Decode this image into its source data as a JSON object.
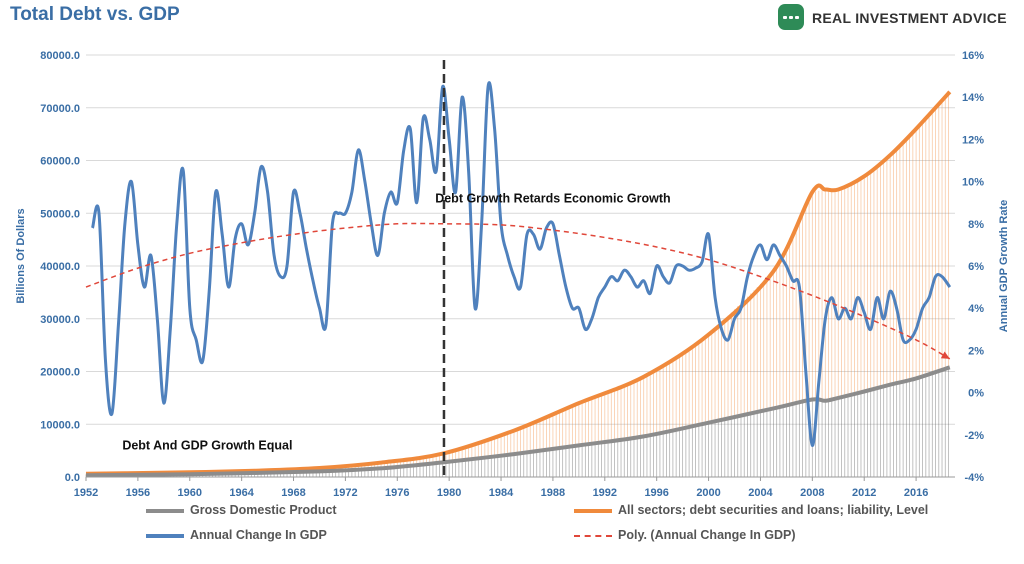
{
  "header": {
    "title": "Total Debt vs. GDP",
    "brand_name": "REAL INVESTMENT ADVICE"
  },
  "legend": {
    "gdp": "Gross Domestic Product",
    "debt": "All sectors; debt securities and loans; liability, Level",
    "growth": "Annual Change In GDP",
    "poly": "Poly. (Annual Change In GDP)"
  },
  "colors": {
    "gdp": "#8c8c8c",
    "debt": "#f08a3c",
    "growth": "#4f81bd",
    "poly": "#e0473a",
    "title": "#3a6ea5",
    "brand": "#2e8b57"
  },
  "chart_data": {
    "type": "line",
    "title": "Total Debt vs. GDP",
    "ylabel_left": "Billions Of Dollars",
    "ylabel_right": "Annual GDP Growth Rate",
    "xlim": [
      1952,
      2019
    ],
    "ylim_left": [
      0,
      80000
    ],
    "ylim_right": [
      -4,
      16
    ],
    "x_ticks": [
      "1952",
      "1956",
      "1960",
      "1964",
      "1968",
      "1972",
      "1976",
      "1980",
      "1984",
      "1988",
      "1992",
      "1996",
      "2000",
      "2004",
      "2008",
      "2012",
      "2016"
    ],
    "y_left_ticks": [
      "0.0",
      "10000.0",
      "20000.0",
      "30000.0",
      "40000.0",
      "50000.0",
      "60000.0",
      "70000.0",
      "80000.0"
    ],
    "y_right_ticks": [
      "-4%",
      "-2%",
      "0%",
      "2%",
      "4%",
      "6%",
      "8%",
      "10%",
      "12%",
      "14%",
      "16%"
    ],
    "vertical_marker_year": 1979.6,
    "annotations": [
      {
        "text": "Debt Growth Retards Economic Growth",
        "x": 1988,
        "y_right": 9.0
      },
      {
        "text": "Debt And GDP Growth Equal",
        "x": 1954.8,
        "y_right": -2.7
      }
    ],
    "series": [
      {
        "name": "All sectors; debt securities and loans; liability, Level",
        "axis": "left",
        "x": [
          1952,
          1955,
          1960,
          1965,
          1970,
          1975,
          1979.6,
          1985,
          1990,
          1995,
          2000,
          2005,
          2008,
          2009,
          2010,
          2012,
          2014,
          2016,
          2018.6
        ],
        "values": [
          600,
          700,
          900,
          1200,
          1700,
          2800,
          4500,
          8800,
          14000,
          19000,
          27000,
          39000,
          54000,
          54500,
          54500,
          57000,
          61000,
          66000,
          73000
        ]
      },
      {
        "name": "Gross Domestic Product",
        "axis": "left",
        "x": [
          1952,
          1960,
          1970,
          1975,
          1979.6,
          1985,
          1990,
          1995,
          2000,
          2005,
          2008,
          2009,
          2010,
          2012,
          2014,
          2016,
          2018.6
        ],
        "values": [
          350,
          540,
          1070,
          1690,
          2800,
          4350,
          6000,
          7700,
          10300,
          13000,
          14700,
          14450,
          15000,
          16200,
          17500,
          18700,
          20800
        ]
      },
      {
        "name": "Annual Change In GDP",
        "axis": "right",
        "x": [
          1952.5,
          1953,
          1953.5,
          1954,
          1954.5,
          1955,
          1955.5,
          1956,
          1956.5,
          1957,
          1957.5,
          1958,
          1958.5,
          1959,
          1959.5,
          1960,
          1960.5,
          1961,
          1961.5,
          1962,
          1962.5,
          1963,
          1963.5,
          1964,
          1964.5,
          1965,
          1965.5,
          1966,
          1966.5,
          1967,
          1967.5,
          1968,
          1968.5,
          1969,
          1969.5,
          1970,
          1970.5,
          1971,
          1971.5,
          1972,
          1972.5,
          1973,
          1973.5,
          1974,
          1974.5,
          1975,
          1975.5,
          1976,
          1976.5,
          1977,
          1977.5,
          1978,
          1978.5,
          1979,
          1979.5,
          1980,
          1980.5,
          1981,
          1981.5,
          1982,
          1982.5,
          1983,
          1983.5,
          1984,
          1984.5,
          1985,
          1985.5,
          1986,
          1986.5,
          1987,
          1987.5,
          1988,
          1988.5,
          1989,
          1989.5,
          1990,
          1990.5,
          1991,
          1991.5,
          1992,
          1992.5,
          1993,
          1993.5,
          1994,
          1994.5,
          1995,
          1995.5,
          1996,
          1996.5,
          1997,
          1997.5,
          1998,
          1998.5,
          1999,
          1999.5,
          2000,
          2000.5,
          2001,
          2001.5,
          2002,
          2002.5,
          2003,
          2003.5,
          2004,
          2004.5,
          2005,
          2005.5,
          2006,
          2006.5,
          2007,
          2007.5,
          2008,
          2008.5,
          2009,
          2009.5,
          2010,
          2010.5,
          2011,
          2011.5,
          2012,
          2012.5,
          2013,
          2013.5,
          2014,
          2014.5,
          2015,
          2015.5,
          2016,
          2016.5,
          2017,
          2017.5,
          2018,
          2018.6
        ],
        "values": [
          7.8,
          8.5,
          1.5,
          -1.0,
          3.2,
          8.0,
          10.0,
          7.0,
          5.0,
          6.5,
          3.5,
          -0.5,
          3.0,
          8.0,
          10.5,
          4.0,
          2.5,
          1.5,
          4.8,
          9.5,
          7.5,
          5.0,
          7.3,
          8.0,
          7.0,
          8.5,
          10.7,
          9.5,
          6.5,
          5.5,
          6.0,
          9.5,
          8.5,
          6.8,
          5.3,
          4.0,
          3.2,
          8.0,
          8.5,
          8.5,
          9.5,
          11.5,
          10.0,
          8.0,
          6.5,
          8.5,
          9.5,
          9.0,
          11.5,
          12.5,
          9.0,
          13.0,
          12.0,
          10.5,
          14.5,
          12.0,
          9.5,
          14.0,
          10.5,
          4.0,
          8.0,
          14.5,
          12.5,
          8.0,
          6.5,
          5.5,
          5.0,
          7.5,
          7.5,
          6.8,
          7.8,
          8.0,
          6.5,
          5.0,
          4.0,
          4.0,
          3.0,
          3.5,
          4.5,
          5.0,
          5.5,
          5.3,
          5.8,
          5.5,
          5.0,
          5.3,
          4.7,
          6.0,
          5.5,
          5.2,
          6.0,
          6.0,
          5.8,
          5.9,
          6.2,
          7.5,
          4.5,
          3.0,
          2.5,
          3.5,
          4.0,
          5.5,
          6.5,
          7.0,
          6.3,
          7.0,
          6.5,
          6.0,
          5.3,
          5.0,
          1.0,
          -2.5,
          0.5,
          3.5,
          4.5,
          3.5,
          4.0,
          3.5,
          4.5,
          3.8,
          3.0,
          4.5,
          3.5,
          4.8,
          4.0,
          2.5,
          2.5,
          3.0,
          4.0,
          4.5,
          5.5,
          5.5,
          5.0
        ]
      },
      {
        "name": "Poly. (Annual Change In GDP)",
        "axis": "right",
        "trend": "polynomial",
        "x": [
          1952,
          1956,
          1960,
          1964,
          1968,
          1972,
          1976,
          1979.6,
          1984,
          1988,
          1992,
          1996,
          2000,
          2004,
          2008,
          2012,
          2016,
          2018.6
        ],
        "values": [
          5.0,
          5.9,
          6.6,
          7.1,
          7.5,
          7.8,
          8.0,
          8.0,
          7.95,
          7.7,
          7.35,
          6.9,
          6.3,
          5.5,
          4.6,
          3.6,
          2.5,
          1.6
        ]
      }
    ]
  }
}
